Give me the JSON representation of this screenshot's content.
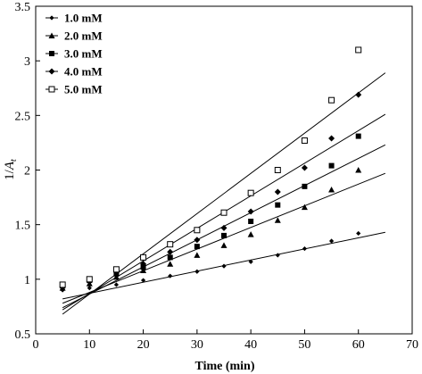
{
  "chart_data": {
    "type": "scatter",
    "title": "",
    "xlabel": "Time (min)",
    "ylabel_main": "1/",
    "ylabel_var": "A",
    "ylabel_sub": "t",
    "xlim": [
      0,
      70
    ],
    "ylim": [
      0.5,
      3.5
    ],
    "xticks": [
      0,
      10,
      20,
      30,
      40,
      50,
      60,
      70
    ],
    "yticks": [
      0.5,
      1,
      1.5,
      2,
      2.5,
      3,
      3.5
    ],
    "ytick_labels": [
      "0.5",
      "1",
      "1.5",
      "2",
      "2.5",
      "3",
      "3.5"
    ],
    "grid": false,
    "legend_position": "top-left",
    "series": [
      {
        "name": "1.0 mM",
        "marker": "diamond-small",
        "x": [
          5,
          10,
          15,
          20,
          25,
          30,
          35,
          40,
          45,
          50,
          55,
          60
        ],
        "y": [
          0.9,
          0.92,
          0.95,
          0.99,
          1.03,
          1.07,
          1.12,
          1.16,
          1.22,
          1.28,
          1.35,
          1.42
        ],
        "fit": {
          "x0": 5,
          "y0": 0.82,
          "x1": 65,
          "y1": 1.43
        }
      },
      {
        "name": "2.0 mM",
        "marker": "triangle",
        "x": [
          5,
          10,
          15,
          20,
          25,
          30,
          35,
          40,
          45,
          50,
          55,
          60
        ],
        "y": [
          0.92,
          0.96,
          1.02,
          1.08,
          1.14,
          1.22,
          1.31,
          1.41,
          1.54,
          1.66,
          1.82,
          2.0
        ],
        "fit": {
          "x0": 5,
          "y0": 0.78,
          "x1": 65,
          "y1": 1.97
        }
      },
      {
        "name": "3.0 mM",
        "marker": "square",
        "x": [
          5,
          10,
          15,
          20,
          25,
          30,
          35,
          40,
          45,
          50,
          55,
          60
        ],
        "y": [
          0.94,
          0.99,
          1.05,
          1.11,
          1.2,
          1.3,
          1.4,
          1.53,
          1.68,
          1.85,
          2.04,
          2.31
        ],
        "fit": {
          "x0": 5,
          "y0": 0.74,
          "x1": 65,
          "y1": 2.23
        }
      },
      {
        "name": "4.0 mM",
        "marker": "diamond",
        "x": [
          5,
          10,
          15,
          20,
          25,
          30,
          35,
          40,
          45,
          50,
          55,
          60
        ],
        "y": [
          0.93,
          0.98,
          1.07,
          1.14,
          1.25,
          1.36,
          1.47,
          1.62,
          1.8,
          2.02,
          2.29,
          2.69
        ],
        "fit": {
          "x0": 5,
          "y0": 0.72,
          "x1": 65,
          "y1": 2.51
        }
      },
      {
        "name": "5.0 mM",
        "marker": "square-open",
        "x": [
          5,
          10,
          15,
          20,
          25,
          30,
          35,
          40,
          45,
          50,
          55,
          60
        ],
        "y": [
          0.95,
          1.0,
          1.09,
          1.2,
          1.32,
          1.45,
          1.61,
          1.79,
          2.0,
          2.27,
          2.64,
          3.1
        ],
        "fit": {
          "x0": 5,
          "y0": 0.68,
          "x1": 65,
          "y1": 2.89
        }
      }
    ]
  }
}
